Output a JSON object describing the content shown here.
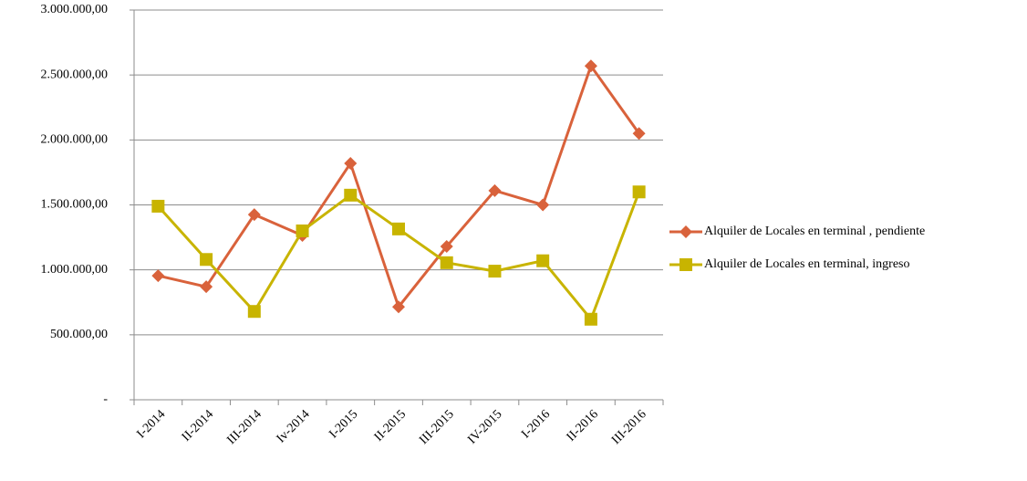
{
  "chart_data": {
    "type": "line",
    "categories": [
      "I-2014",
      "II-2014",
      "III-2014",
      "Iv-2014",
      "I-2015",
      "II-2015",
      "III-2015",
      "IV-2015",
      "I-2016",
      "II-2016",
      "III-2016"
    ],
    "series": [
      {
        "name": "Alquiler de Locales en terminal , pendiente",
        "color": "#d9623b",
        "marker": "diamond",
        "values": [
          955000,
          870000,
          1425000,
          1265000,
          1820000,
          715000,
          1180000,
          1610000,
          1500000,
          2570000,
          2050000
        ]
      },
      {
        "name": "Alquiler de Locales en terminal, ingreso",
        "color": "#c8b400",
        "marker": "square",
        "values": [
          1490000,
          1080000,
          680000,
          1300000,
          1575000,
          1315000,
          1055000,
          990000,
          1070000,
          620000,
          1600000
        ]
      }
    ],
    "ylim": [
      0,
      3000000
    ],
    "yticks": [
      {
        "value": 0,
        "label": "-"
      },
      {
        "value": 500000,
        "label": "500.000,00"
      },
      {
        "value": 1000000,
        "label": "1.000.000,00"
      },
      {
        "value": 1500000,
        "label": "1.500.000,00"
      },
      {
        "value": 2000000,
        "label": "2.000.000,00"
      },
      {
        "value": 2500000,
        "label": "2.500.000,00"
      },
      {
        "value": 3000000,
        "label": "3.000.000,00"
      }
    ],
    "grid": true,
    "legend": "right"
  }
}
